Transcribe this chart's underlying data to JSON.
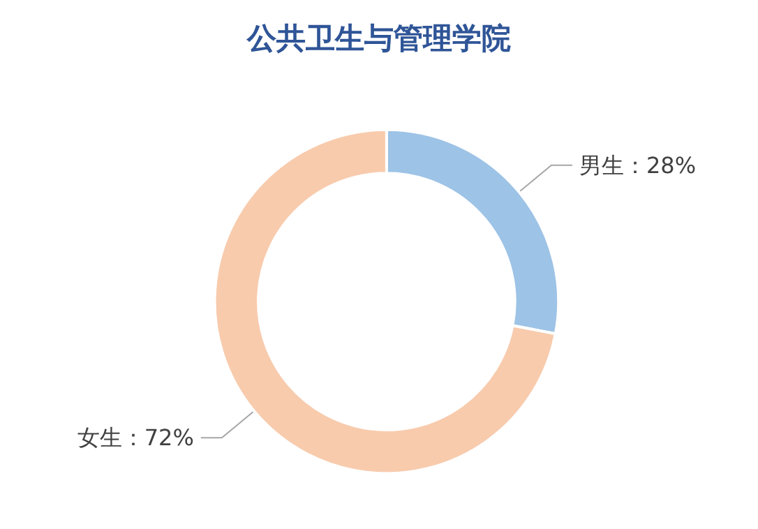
{
  "chart_data": {
    "type": "donut",
    "title": "公共卫生与管理学院",
    "categories": [
      "男生",
      "女生"
    ],
    "values": [
      28,
      72
    ],
    "colors": [
      "#9dc3e6",
      "#f8cbad"
    ],
    "value_labels": [
      "：28%",
      "：72%"
    ],
    "legend": false
  }
}
